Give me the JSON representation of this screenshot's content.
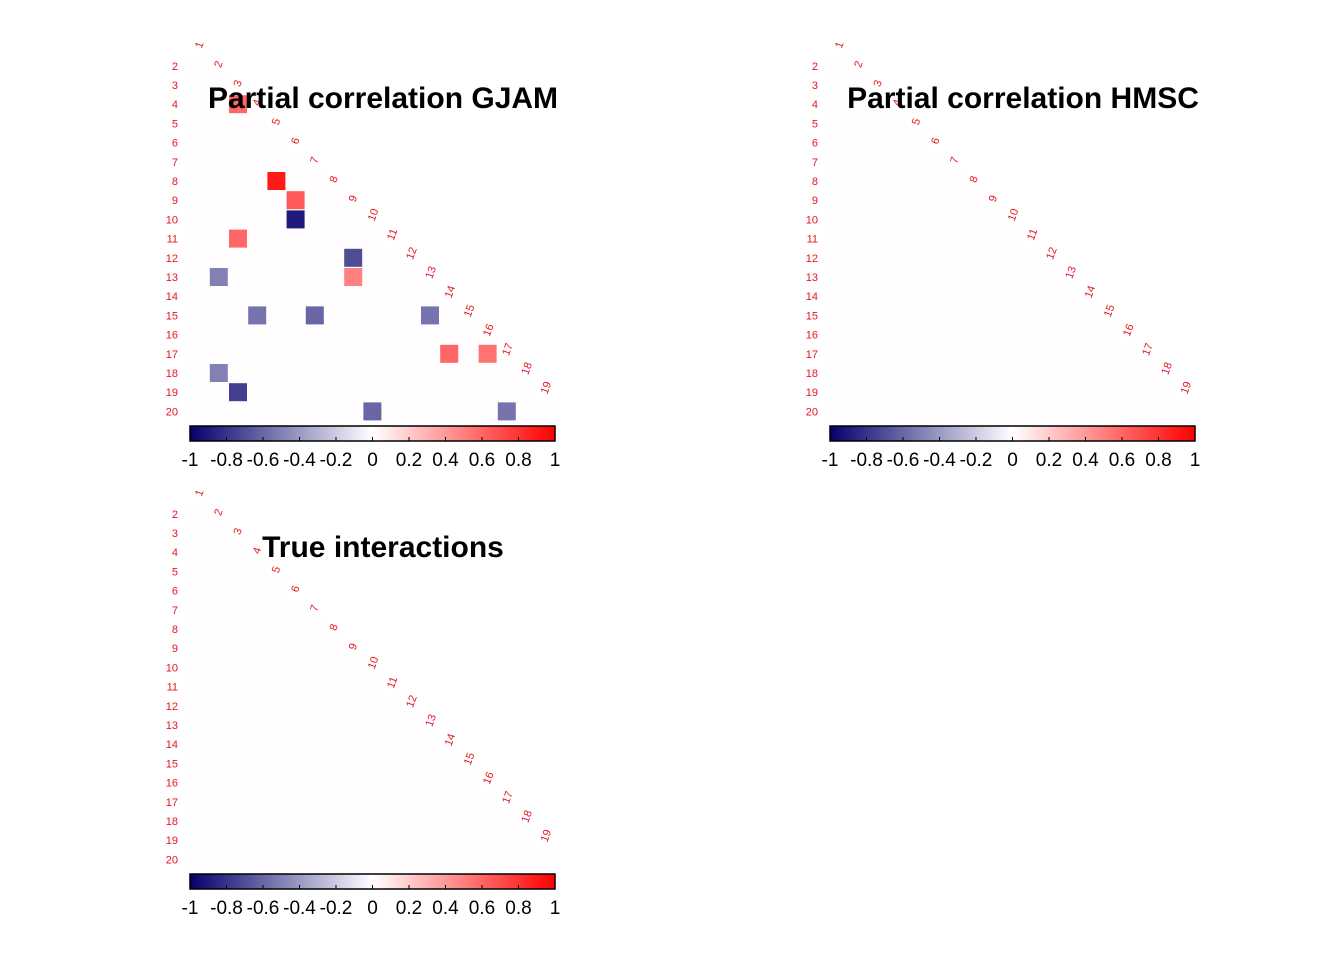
{
  "chart_data": [
    {
      "type": "heatmap",
      "title": "Partial correlation GJAM",
      "row_labels": [
        "2",
        "3",
        "4",
        "5",
        "6",
        "7",
        "8",
        "9",
        "10",
        "11",
        "12",
        "13",
        "14",
        "15",
        "16",
        "17",
        "18",
        "19",
        "20"
      ],
      "col_labels": [
        "1",
        "2",
        "3",
        "4",
        "5",
        "6",
        "7",
        "8",
        "9",
        "10",
        "11",
        "12",
        "13",
        "14",
        "15",
        "16",
        "17",
        "18",
        "19"
      ],
      "cells": [
        {
          "row": 4,
          "col": 3,
          "value": 0.6
        },
        {
          "row": 8,
          "col": 5,
          "value": 0.9
        },
        {
          "row": 9,
          "col": 6,
          "value": 0.65
        },
        {
          "row": 10,
          "col": 6,
          "value": -0.9
        },
        {
          "row": 11,
          "col": 3,
          "value": 0.6
        },
        {
          "row": 12,
          "col": 9,
          "value": -0.7
        },
        {
          "row": 13,
          "col": 2,
          "value": -0.5
        },
        {
          "row": 13,
          "col": 9,
          "value": 0.5
        },
        {
          "row": 15,
          "col": 4,
          "value": -0.55
        },
        {
          "row": 15,
          "col": 7,
          "value": -0.6
        },
        {
          "row": 15,
          "col": 13,
          "value": -0.55
        },
        {
          "row": 17,
          "col": 14,
          "value": 0.6
        },
        {
          "row": 17,
          "col": 16,
          "value": 0.55
        },
        {
          "row": 18,
          "col": 2,
          "value": -0.5
        },
        {
          "row": 19,
          "col": 3,
          "value": -0.75
        },
        {
          "row": 20,
          "col": 10,
          "value": -0.6
        },
        {
          "row": 20,
          "col": 17,
          "value": -0.55
        }
      ],
      "colorbar": {
        "ticks": [
          "-1",
          "-0.8",
          "-0.6",
          "-0.4",
          "-0.2",
          "0",
          "0.2",
          "0.4",
          "0.6",
          "0.8",
          "1"
        ],
        "range": [
          -1,
          1
        ]
      }
    },
    {
      "type": "heatmap",
      "title": "Partial correlation HMSC",
      "row_labels": [
        "2",
        "3",
        "4",
        "5",
        "6",
        "7",
        "8",
        "9",
        "10",
        "11",
        "12",
        "13",
        "14",
        "15",
        "16",
        "17",
        "18",
        "19",
        "20"
      ],
      "col_labels": [
        "1",
        "2",
        "3",
        "4",
        "5",
        "6",
        "7",
        "8",
        "9",
        "10",
        "11",
        "12",
        "13",
        "14",
        "15",
        "16",
        "17",
        "18",
        "19"
      ],
      "cells": [],
      "colorbar": {
        "ticks": [
          "-1",
          "-0.8",
          "-0.6",
          "-0.4",
          "-0.2",
          "0",
          "0.2",
          "0.4",
          "0.6",
          "0.8",
          "1"
        ],
        "range": [
          -1,
          1
        ]
      }
    },
    {
      "type": "heatmap",
      "title": "True interactions",
      "row_labels": [
        "2",
        "3",
        "4",
        "5",
        "6",
        "7",
        "8",
        "9",
        "10",
        "11",
        "12",
        "13",
        "14",
        "15",
        "16",
        "17",
        "18",
        "19",
        "20"
      ],
      "col_labels": [
        "1",
        "2",
        "3",
        "4",
        "5",
        "6",
        "7",
        "8",
        "9",
        "10",
        "11",
        "12",
        "13",
        "14",
        "15",
        "16",
        "17",
        "18",
        "19"
      ],
      "cells": [],
      "colorbar": {
        "ticks": [
          "-1",
          "-0.8",
          "-0.6",
          "-0.4",
          "-0.2",
          "0",
          "0.2",
          "0.4",
          "0.6",
          "0.8",
          "1"
        ],
        "range": [
          -1,
          1
        ]
      }
    }
  ],
  "colors": {
    "negative": "#05006b",
    "zero": "#ffffff",
    "positive": "#ff0000",
    "background": "#fffdfd",
    "label": "#e8141e"
  }
}
